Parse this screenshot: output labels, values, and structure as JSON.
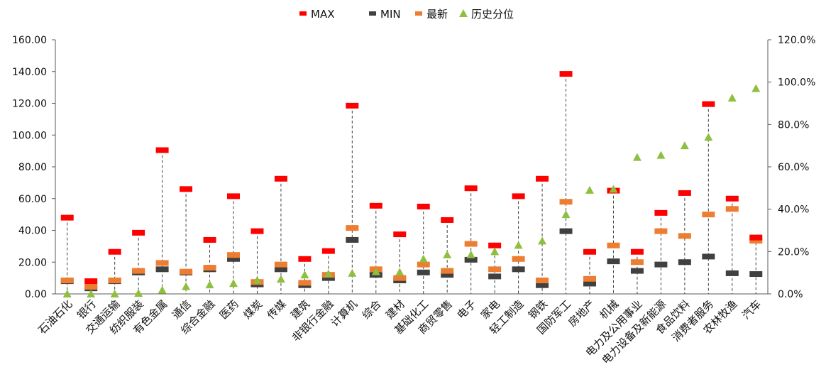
{
  "chart_data": {
    "type": "scatter",
    "categories": [
      "石油石化",
      "银行",
      "交通运输",
      "纺织服装",
      "有色金属",
      "通信",
      "综合金融",
      "医药",
      "煤炭",
      "传媒",
      "建筑",
      "非银行金融",
      "计算机",
      "综合",
      "建材",
      "基础化工",
      "商贸零售",
      "电子",
      "家电",
      "轻工制造",
      "钢铁",
      "国防军工",
      "房地产",
      "机械",
      "电力及公用事业",
      "电力设备及新能源",
      "食品饮料",
      "消费者服务",
      "农林牧渔",
      "汽车"
    ],
    "series": [
      {
        "name": "MAX",
        "axis": "left",
        "color": "#ff0000",
        "values": [
          48,
          8,
          26.5,
          38.5,
          90.5,
          66,
          34,
          61.5,
          39.5,
          72.5,
          22,
          27,
          118.5,
          55.5,
          37.5,
          55,
          46.5,
          66.5,
          30.5,
          61.5,
          72.5,
          138.5,
          26.5,
          65,
          26.5,
          51,
          63.5,
          119.5,
          60,
          35.5
        ]
      },
      {
        "name": "MIN",
        "axis": "left",
        "color": "#404040",
        "values": [
          8,
          3.5,
          8,
          13.5,
          15.5,
          13.5,
          15.5,
          22,
          6,
          15.5,
          5.5,
          10,
          34,
          12,
          8.5,
          13.5,
          12,
          21.5,
          11,
          15.5,
          5.5,
          39.5,
          6.5,
          20.5,
          14.5,
          18.5,
          20,
          23.5,
          13,
          12.5
        ]
      },
      {
        "name": "最新",
        "axis": "left",
        "color": "#ed7d31",
        "values": [
          8.5,
          4.5,
          8.5,
          14.5,
          19.5,
          14,
          16.5,
          24.5,
          7.5,
          18.5,
          7,
          12,
          41.5,
          15.5,
          10,
          18.5,
          14.5,
          31.5,
          15.5,
          22,
          8.5,
          58,
          9.5,
          30.5,
          20,
          39.5,
          36.5,
          50,
          53.5,
          33.5
        ]
      },
      {
        "name": "历史分位",
        "axis": "right",
        "color": "#8fbf3f",
        "values": [
          0,
          0,
          0,
          0.3,
          1.8,
          3.5,
          4.3,
          5,
          6.5,
          7,
          9,
          9.5,
          9.8,
          10.5,
          10.3,
          16.5,
          18.5,
          18.5,
          20,
          23,
          25,
          37.5,
          49,
          49.5,
          64.5,
          65.5,
          70,
          74,
          92.5,
          97
        ]
      }
    ],
    "ylim": [
      0,
      160
    ],
    "yticks": [
      "0.00",
      "20.00",
      "40.00",
      "60.00",
      "80.00",
      "100.00",
      "120.00",
      "140.00",
      "160.00"
    ],
    "y2lim": [
      0,
      120
    ],
    "y2ticks": [
      "0.0%",
      "20.0%",
      "40.0%",
      "60.0%",
      "80.0%",
      "100.0%",
      "120.0%"
    ],
    "legend": {
      "position": "top-center",
      "items": [
        "MAX",
        "MIN",
        "最新",
        "历史分位"
      ]
    },
    "grid": false,
    "colors": {
      "max": "#ff0000",
      "min": "#404040",
      "latest": "#ed7d31",
      "percentile": "#8fbf3f",
      "dropline": "#404040"
    }
  }
}
